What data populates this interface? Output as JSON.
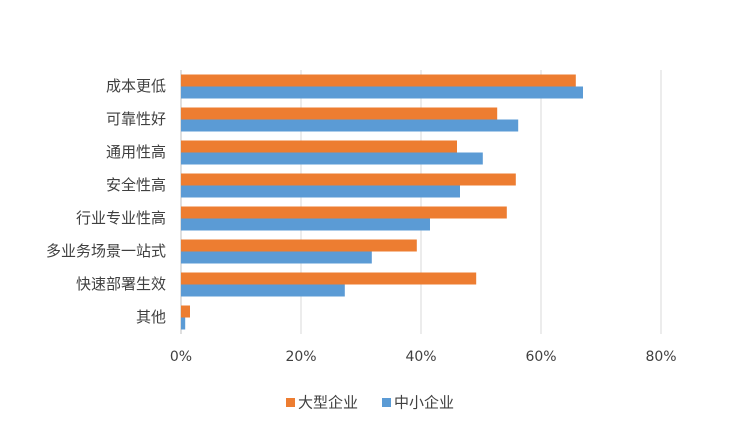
{
  "chart_data": {
    "type": "bar",
    "orientation": "horizontal",
    "categories": [
      "成本更低",
      "可靠性好",
      "通用性高",
      "安全性高",
      "行业专业性高",
      "多业务场景一站式",
      "快速部署生效",
      "其他"
    ],
    "series": [
      {
        "name": "大型企业",
        "color": "#ed7d31",
        "values": [
          65.8,
          52.7,
          46,
          55.8,
          54.3,
          39.3,
          49.2,
          1.5
        ]
      },
      {
        "name": "中小企业",
        "color": "#5b9bd5",
        "values": [
          67,
          56.2,
          50.3,
          46.5,
          41.5,
          31.8,
          27.3,
          0.7
        ]
      }
    ],
    "xlim": [
      0,
      80
    ],
    "xticks": [
      {
        "value": 0,
        "label": "0%"
      },
      {
        "value": 20,
        "label": "20%"
      },
      {
        "value": 40,
        "label": "40%"
      },
      {
        "value": 60,
        "label": "60%"
      },
      {
        "value": 80,
        "label": "80%"
      }
    ],
    "grid": true,
    "legend": "bottom"
  }
}
